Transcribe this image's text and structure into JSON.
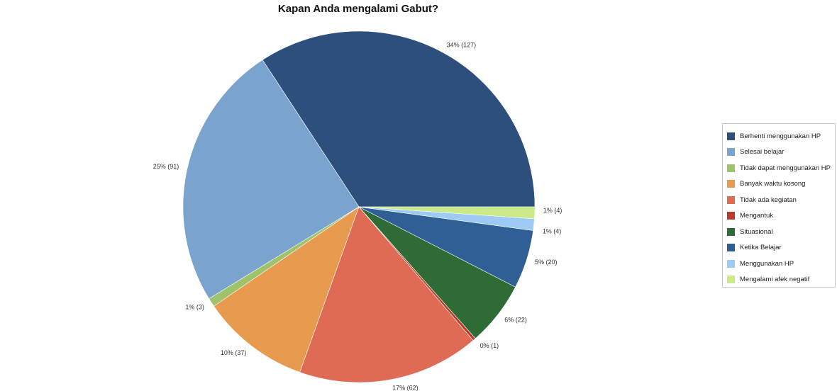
{
  "chart_data": {
    "type": "pie",
    "title": "Kapan Anda mengalami Gabut?",
    "legend_position": "right",
    "slices": [
      {
        "name": "Berhenti menggunakan HP",
        "value": 127,
        "label": "34% (127)",
        "color": "#2c4f7c"
      },
      {
        "name": "Selesai belajar",
        "value": 91,
        "label": "25% (91)",
        "color": "#7aa3ce"
      },
      {
        "name": "Tidak dapat menggunakan HP",
        "value": 3,
        "label": "1% (3)",
        "color": "#9ec36b"
      },
      {
        "name": "Banyak waktu kosong",
        "value": 37,
        "label": "10% (37)",
        "color": "#e89a4e"
      },
      {
        "name": "Tidak ada kegiatan",
        "value": 62,
        "label": "17% (62)",
        "color": "#e06b54"
      },
      {
        "name": "Mengantuk",
        "value": 1,
        "label": "0% (1)",
        "color": "#b83c2c"
      },
      {
        "name": "Situasional",
        "value": 22,
        "label": "6% (22)",
        "color": "#2e6b35"
      },
      {
        "name": "Ketika Belajar",
        "value": 20,
        "label": "5% (20)",
        "color": "#2f5f95"
      },
      {
        "name": "Menggunakan HP",
        "value": 4,
        "label": "1% (4)",
        "color": "#9ecbf4"
      },
      {
        "name": "Mengalami afek negatif",
        "value": 4,
        "label": "1% (4)",
        "color": "#c9ea86"
      }
    ]
  }
}
